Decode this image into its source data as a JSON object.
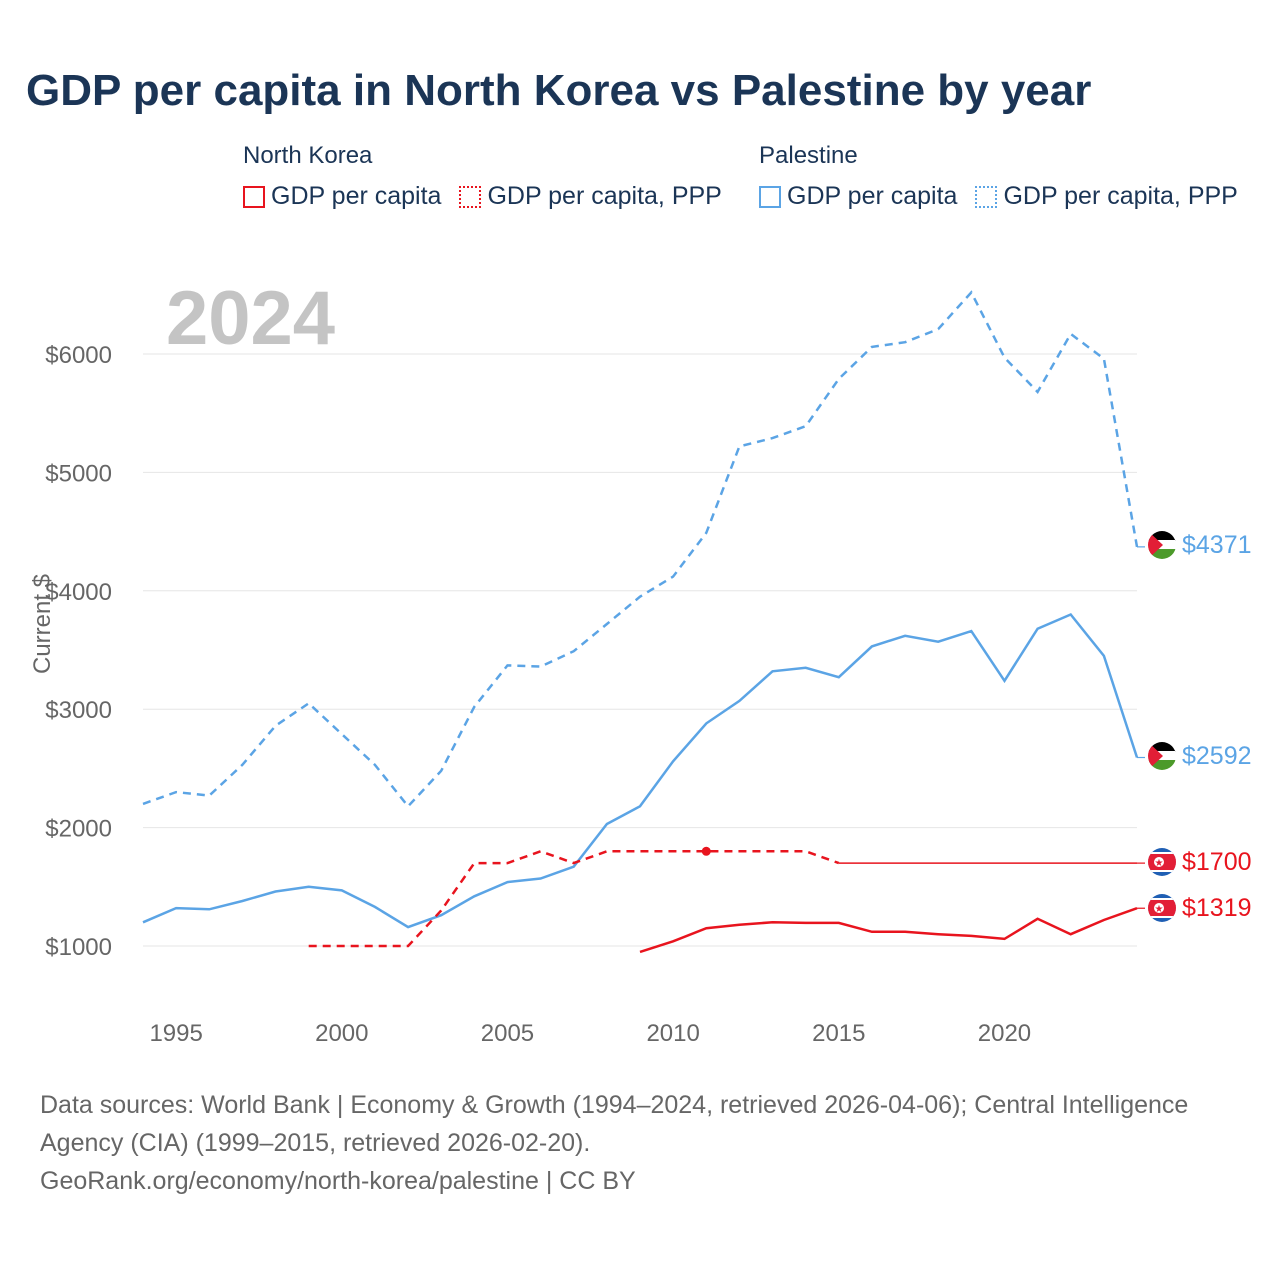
{
  "title": "GDP per capita in North Korea vs Palestine by year",
  "legend": {
    "groups": [
      {
        "name": "North Korea",
        "items": [
          {
            "label": "GDP per capita",
            "style": "solid",
            "color": "#e8141e"
          },
          {
            "label": "GDP per capita, PPP",
            "style": "dotted",
            "color": "#e8141e"
          }
        ]
      },
      {
        "name": "Palestine",
        "items": [
          {
            "label": "GDP per capita",
            "style": "solid",
            "color": "#5ba4e5"
          },
          {
            "label": "GDP per capita, PPP",
            "style": "dotted",
            "color": "#5ba4e5"
          }
        ]
      }
    ]
  },
  "year_watermark": "2024",
  "footer": {
    "sources": "Data sources: World Bank | Economy & Growth (1994–2024, retrieved 2026-04-06); Central Intelligence Agency (CIA) (1999–2015, retrieved 2026-02-20).",
    "credit": "GeoRank.org/economy/north-korea/palestine | CC BY"
  },
  "chart_data": {
    "type": "line",
    "title": "GDP per capita in North Korea vs Palestine by year",
    "xlabel": "",
    "ylabel": "Current $",
    "xlim": [
      1994,
      2024
    ],
    "ylim": [
      500,
      6800
    ],
    "x_ticks": [
      1995,
      2000,
      2005,
      2010,
      2015,
      2020
    ],
    "x_tick_labels": [
      "1995",
      "2000",
      "2005",
      "2010",
      "2015",
      "2020"
    ],
    "y_ticks": [
      1000,
      2000,
      3000,
      4000,
      5000,
      6000
    ],
    "y_tick_labels": [
      "$1000",
      "$2000",
      "$3000",
      "$4000",
      "$5000",
      "$6000"
    ],
    "grid": true,
    "series": [
      {
        "name": "Palestine GDP per capita, PPP",
        "country": "Palestine",
        "color": "#5ba4e5",
        "dash": "dashed",
        "end_label": "$4371",
        "x": [
          1994,
          1995,
          1996,
          1997,
          1998,
          1999,
          2000,
          2001,
          2002,
          2003,
          2004,
          2005,
          2006,
          2007,
          2008,
          2009,
          2010,
          2011,
          2012,
          2013,
          2014,
          2015,
          2016,
          2017,
          2018,
          2019,
          2020,
          2021,
          2022,
          2023,
          2024
        ],
        "values": [
          2200,
          2300,
          2270,
          2530,
          2860,
          3050,
          2790,
          2530,
          2180,
          2480,
          3020,
          3370,
          3360,
          3490,
          3720,
          3950,
          4120,
          4490,
          5220,
          5290,
          5390,
          5790,
          6060,
          6100,
          6210,
          6520,
          5970,
          5680,
          6170,
          5960,
          4371
        ]
      },
      {
        "name": "Palestine GDP per capita",
        "country": "Palestine",
        "color": "#5ba4e5",
        "dash": "solid",
        "end_label": "$2592",
        "x": [
          1994,
          1995,
          1996,
          1997,
          1998,
          1999,
          2000,
          2001,
          2002,
          2003,
          2004,
          2005,
          2006,
          2007,
          2008,
          2009,
          2010,
          2011,
          2012,
          2013,
          2014,
          2015,
          2016,
          2017,
          2018,
          2019,
          2020,
          2021,
          2022,
          2023,
          2024
        ],
        "values": [
          1200,
          1320,
          1310,
          1380,
          1460,
          1500,
          1470,
          1330,
          1160,
          1260,
          1420,
          1540,
          1570,
          1670,
          2030,
          2180,
          2560,
          2880,
          3070,
          3320,
          3350,
          3270,
          3530,
          3620,
          3570,
          3660,
          3240,
          3680,
          3800,
          3450,
          2592
        ]
      },
      {
        "name": "North Korea GDP per capita, PPP",
        "country": "North Korea",
        "color": "#e8141e",
        "dash": "dashed",
        "end_label": "$1700",
        "x": [
          1999,
          2000,
          2001,
          2002,
          2003,
          2004,
          2005,
          2006,
          2007,
          2008,
          2009,
          2010,
          2011,
          2012,
          2013,
          2014,
          2015,
          2016,
          2017,
          2018,
          2019,
          2020,
          2021,
          2022,
          2023,
          2024
        ],
        "values": [
          1000,
          1000,
          1000,
          1000,
          1300,
          1700,
          1700,
          1800,
          1700,
          1800,
          1800,
          1800,
          1800,
          1800,
          1800,
          1800,
          1700,
          1700,
          1700,
          1700,
          1700,
          1700,
          1700,
          1700,
          1700,
          1700
        ],
        "projected_from": 2015,
        "highlight_point": {
          "x": 2011,
          "value": 1800
        }
      },
      {
        "name": "North Korea GDP per capita",
        "country": "North Korea",
        "color": "#e8141e",
        "dash": "solid",
        "end_label": "$1319",
        "x": [
          2009,
          2010,
          2011,
          2012,
          2013,
          2014,
          2015,
          2016,
          2017,
          2018,
          2019,
          2020,
          2021,
          2022,
          2023,
          2024
        ],
        "values": [
          950,
          1040,
          1150,
          1180,
          1200,
          1195,
          1195,
          1120,
          1120,
          1100,
          1085,
          1060,
          1230,
          1100,
          1220,
          1319
        ]
      }
    ]
  }
}
